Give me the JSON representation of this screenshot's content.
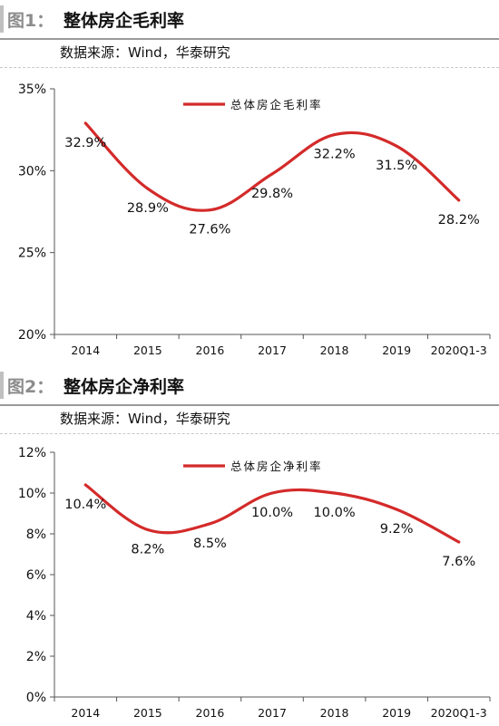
{
  "figures": [
    {
      "label": "图1：",
      "title": "整体房企毛利率",
      "source": "数据来源：Wind，华泰研究"
    },
    {
      "label": "图2：",
      "title": "整体房企净利率",
      "source": "数据来源：Wind，华泰研究"
    }
  ],
  "chart_data": [
    {
      "type": "line",
      "categories": [
        "2014",
        "2015",
        "2016",
        "2017",
        "2018",
        "2019",
        "2020Q1-3"
      ],
      "series": [
        {
          "name": "总体房企毛利率",
          "values": [
            32.9,
            28.9,
            27.6,
            29.8,
            32.2,
            31.5,
            28.2
          ],
          "labels": [
            "32.9%",
            "28.9%",
            "27.6%",
            "29.8%",
            "32.2%",
            "31.5%",
            "28.2%"
          ]
        }
      ],
      "ylim": [
        20,
        35
      ],
      "yticks": [
        20,
        25,
        30,
        35
      ],
      "ytick_labels": [
        "20%",
        "25%",
        "30%",
        "35%"
      ],
      "grid": false,
      "legend_position": "top-center",
      "colors": {
        "line": "#d42a2a"
      }
    },
    {
      "type": "line",
      "categories": [
        "2014",
        "2015",
        "2016",
        "2017",
        "2018",
        "2019",
        "2020Q1-3"
      ],
      "series": [
        {
          "name": "总体房企净利率",
          "values": [
            10.4,
            8.2,
            8.5,
            10.0,
            10.0,
            9.2,
            7.6
          ],
          "labels": [
            "10.4%",
            "8.2%",
            "8.5%",
            "10.0%",
            "10.0%",
            "9.2%",
            "7.6%"
          ]
        }
      ],
      "ylim": [
        0,
        12
      ],
      "yticks": [
        0,
        2,
        4,
        6,
        8,
        10,
        12
      ],
      "ytick_labels": [
        "0%",
        "2%",
        "4%",
        "6%",
        "8%",
        "10%",
        "12%"
      ],
      "grid": false,
      "legend_position": "top-center",
      "colors": {
        "line": "#d42a2a"
      }
    }
  ]
}
